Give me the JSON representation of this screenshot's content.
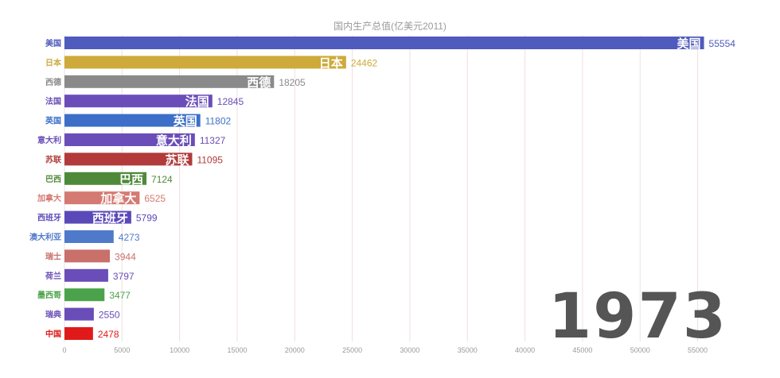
{
  "chart_data": {
    "type": "bar",
    "orientation": "horizontal",
    "title": "国内生产总值(亿美元2011)",
    "year": "1973",
    "categories": [
      "美国",
      "日本",
      "西德",
      "法国",
      "英国",
      "意大利",
      "苏联",
      "巴西",
      "加拿大",
      "西班牙",
      "澳大利亚",
      "瑞士",
      "荷兰",
      "墨西哥",
      "瑞典",
      "中国"
    ],
    "values": [
      55554,
      24462,
      18205,
      12845,
      11802,
      11327,
      11095,
      7124,
      6525,
      5799,
      4273,
      3944,
      3797,
      3477,
      2550,
      2478
    ],
    "colors": [
      "#4f5bbd",
      "#cdaa3a",
      "#8a8a8a",
      "#6a4db8",
      "#3d6fc9",
      "#6a4db8",
      "#b23a3a",
      "#4f8a3a",
      "#d47a72",
      "#5a49b9",
      "#4f7ac9",
      "#c9706a",
      "#6a4db8",
      "#4aa34a",
      "#6a4db8",
      "#e01a1a"
    ],
    "show_bar_names": [
      true,
      true,
      true,
      true,
      true,
      true,
      true,
      true,
      true,
      true,
      false,
      false,
      false,
      false,
      false,
      false
    ],
    "xlim": [
      0,
      56000
    ],
    "xticks": [
      0,
      5000,
      10000,
      15000,
      20000,
      25000,
      30000,
      35000,
      40000,
      45000,
      50000,
      55000
    ],
    "grid": true,
    "legend": "none"
  }
}
